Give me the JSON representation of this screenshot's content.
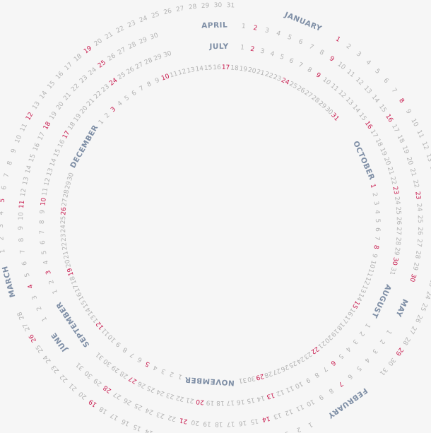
{
  "colors": {
    "background": "#f6f6f6",
    "day": "#b3b3b3",
    "holiday": "#c8184c",
    "month": "#7f8fa6"
  },
  "rings": [
    {
      "name": "outer",
      "segments": [
        {
          "month": "JANUARY",
          "days": 31,
          "highlight": [
            1,
            8,
            15,
            22,
            29
          ]
        },
        {
          "month": "FEBRUARY",
          "days": 28,
          "highlight": [
            5,
            12,
            19,
            26
          ]
        },
        {
          "month": "MARCH",
          "days": 31,
          "highlight": [
            5,
            12,
            19
          ]
        }
      ]
    },
    {
      "name": "second",
      "segments": [
        {
          "month": "APRIL",
          "days": 30,
          "highlight": [
            2,
            9,
            16,
            23,
            30
          ]
        },
        {
          "month": "MAY",
          "days": 31,
          "highlight": [
            7,
            14,
            21,
            28
          ]
        },
        {
          "month": "JUNE",
          "days": 30,
          "highlight": [
            4,
            11,
            18,
            25
          ]
        }
      ]
    },
    {
      "name": "third",
      "segments": [
        {
          "month": "JULY",
          "days": 31,
          "highlight": [
            2,
            9,
            16,
            23,
            30
          ]
        },
        {
          "month": "AUGUST",
          "days": 31,
          "highlight": [
            6,
            13,
            20,
            27
          ]
        },
        {
          "month": "SEPTEMBER",
          "days": 30,
          "highlight": [
            3,
            10,
            17,
            24
          ]
        }
      ]
    },
    {
      "name": "inner",
      "segments": [
        {
          "month": "OCTOBER",
          "days": 31,
          "highlight": [
            1,
            8,
            15,
            22,
            29
          ]
        },
        {
          "month": "NOVEMBER",
          "days": 30,
          "highlight": [
            5,
            12,
            19,
            26
          ]
        },
        {
          "month": "DECEMBER",
          "days": 31,
          "highlight": [
            3,
            10,
            17,
            24,
            31
          ]
        }
      ]
    }
  ]
}
